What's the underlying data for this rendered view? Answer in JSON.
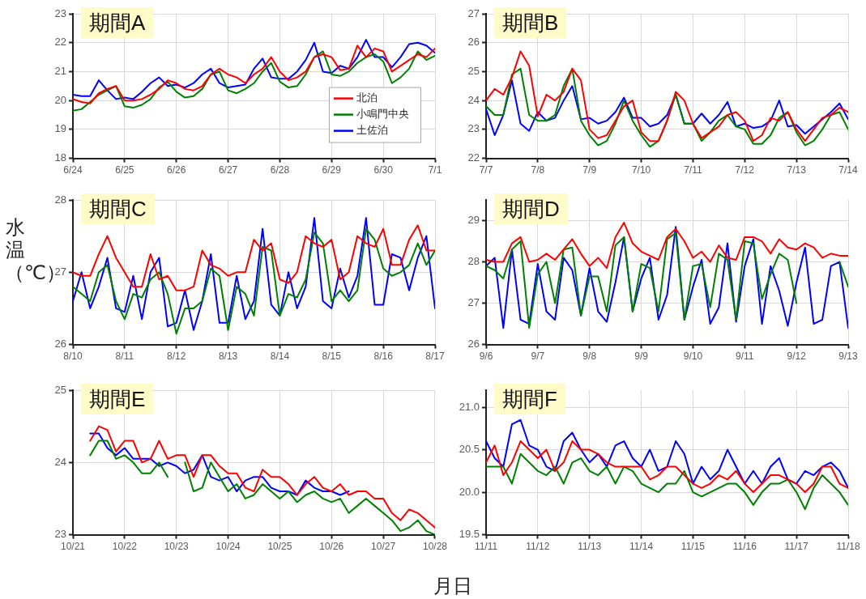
{
  "chart_data": [
    {
      "type": "line",
      "title": "期間A",
      "legend": "bottom right",
      "grid": true,
      "x": [
        "--06-24T00:00",
        "--06-24T04:00",
        "--06-24T08:00",
        "--06-24T12:00",
        "--06-24T16:00",
        "--06-24T20:00",
        "--06-25T00:00",
        "--06-25T04:00",
        "--06-25T08:00",
        "--06-25T12:00",
        "--06-25T16:00",
        "--06-25T20:00",
        "--06-26T00:00",
        "--06-26T04:00",
        "--06-26T08:00",
        "--06-26T12:00",
        "--06-26T16:00",
        "--06-26T20:00",
        "--06-27T00:00",
        "--06-27T04:00",
        "--06-27T08:00",
        "--06-27T12:00",
        "--06-27T16:00",
        "--06-27T20:00",
        "--06-28T00:00",
        "--06-28T04:00",
        "--06-28T08:00",
        "--06-28T12:00",
        "--06-28T16:00",
        "--06-28T20:00",
        "--06-29T00:00",
        "--06-29T04:00",
        "--06-29T08:00",
        "--06-29T12:00",
        "--06-29T16:00",
        "--06-29T20:00",
        "--06-30T00:00",
        "--06-30T04:00",
        "--06-30T08:00",
        "--06-30T12:00",
        "--06-30T16:00",
        "--06-30T20:00",
        "--07-01T00:00"
      ],
      "xlim": [
        "--06-24",
        "--07-01"
      ],
      "xticks": [
        {
          "value": "--06-24",
          "label": "6/24"
        },
        {
          "value": "--06-25",
          "label": "6/25"
        },
        {
          "value": "--06-26",
          "label": "6/26"
        },
        {
          "value": "--06-27",
          "label": "6/27"
        },
        {
          "value": "--06-28",
          "label": "6/28"
        },
        {
          "value": "--06-29",
          "label": "6/29"
        },
        {
          "value": "--06-30",
          "label": "6/30"
        },
        {
          "value": "--07-01",
          "label": "7/1"
        }
      ],
      "ylim": [
        18,
        23
      ],
      "yticks": [
        18,
        19,
        20,
        21,
        22,
        23
      ],
      "series": [
        {
          "name": "北泊",
          "color": "#ff0000",
          "values": [
            20.05,
            19.95,
            19.9,
            20.25,
            20.4,
            20.5,
            20.0,
            20.0,
            20.05,
            20.2,
            20.4,
            20.7,
            20.6,
            20.4,
            20.35,
            20.5,
            20.9,
            21.1,
            20.9,
            20.8,
            20.6,
            20.9,
            21.1,
            21.5,
            21.0,
            20.7,
            20.8,
            21.0,
            21.5,
            21.6,
            21.5,
            21.05,
            21.1,
            21.9,
            21.5,
            21.8,
            21.7,
            21.0,
            21.2,
            21.4,
            21.6,
            21.5,
            21.8
          ]
        },
        {
          "name": "小鳴門中央",
          "color": "#008000",
          "values": [
            19.65,
            19.7,
            19.95,
            20.2,
            20.35,
            20.5,
            19.8,
            19.75,
            19.85,
            20.05,
            20.45,
            20.65,
            20.3,
            20.1,
            20.15,
            20.4,
            20.9,
            21.0,
            20.35,
            20.25,
            20.4,
            20.6,
            21.0,
            21.3,
            20.65,
            20.45,
            20.5,
            20.9,
            21.5,
            21.7,
            20.9,
            20.85,
            21.0,
            21.3,
            21.5,
            21.6,
            21.35,
            20.6,
            20.8,
            21.1,
            21.7,
            21.4,
            21.55
          ]
        },
        {
          "name": "土佐泊",
          "color": "#0000ff",
          "values": [
            20.2,
            20.15,
            20.15,
            20.7,
            20.35,
            20.05,
            20.1,
            20.05,
            20.3,
            20.6,
            20.8,
            20.5,
            20.55,
            20.45,
            20.6,
            20.9,
            21.1,
            20.6,
            20.45,
            20.5,
            20.55,
            21.1,
            21.45,
            20.8,
            20.75,
            20.75,
            21.0,
            21.4,
            22.0,
            21.0,
            20.95,
            21.2,
            21.1,
            21.5,
            22.1,
            21.5,
            21.5,
            21.15,
            21.5,
            21.95,
            22.0,
            21.9,
            21.65
          ]
        }
      ]
    },
    {
      "type": "line",
      "title": "期間B",
      "grid": true,
      "x": [
        "--07-07T00:00",
        "--07-07T04:00",
        "--07-07T08:00",
        "--07-07T12:00",
        "--07-07T16:00",
        "--07-07T20:00",
        "--07-08T00:00",
        "--07-08T04:00",
        "--07-08T08:00",
        "--07-08T12:00",
        "--07-08T16:00",
        "--07-08T20:00",
        "--07-09T00:00",
        "--07-09T04:00",
        "--07-09T08:00",
        "--07-09T12:00",
        "--07-09T16:00",
        "--07-09T20:00",
        "--07-10T00:00",
        "--07-10T04:00",
        "--07-10T08:00",
        "--07-10T12:00",
        "--07-10T16:00",
        "--07-10T20:00",
        "--07-11T00:00",
        "--07-11T04:00",
        "--07-11T08:00",
        "--07-11T12:00",
        "--07-11T16:00",
        "--07-11T20:00",
        "--07-12T00:00",
        "--07-12T04:00",
        "--07-12T08:00",
        "--07-12T12:00",
        "--07-12T16:00",
        "--07-12T20:00",
        "--07-13T00:00",
        "--07-13T04:00",
        "--07-13T08:00",
        "--07-13T12:00",
        "--07-13T16:00",
        "--07-13T20:00",
        "--07-14T00:00"
      ],
      "xlim": [
        "--07-07",
        "--07-14"
      ],
      "xticks": [
        {
          "value": "--07-07",
          "label": "7/7"
        },
        {
          "value": "--07-08",
          "label": "7/8"
        },
        {
          "value": "--07-09",
          "label": "7/9"
        },
        {
          "value": "--07-10",
          "label": "7/10"
        },
        {
          "value": "--07-11",
          "label": "7/11"
        },
        {
          "value": "--07-12",
          "label": "7/12"
        },
        {
          "value": "--07-13",
          "label": "7/13"
        },
        {
          "value": "--07-14",
          "label": "7/14"
        }
      ],
      "ylim": [
        22,
        27
      ],
      "yticks": [
        22,
        23,
        24,
        25,
        26,
        27
      ],
      "series": [
        {
          "color": "#ff0000",
          "values": [
            24.0,
            24.4,
            24.2,
            24.8,
            25.7,
            25.2,
            23.45,
            24.2,
            24.0,
            24.3,
            25.1,
            24.7,
            23.0,
            22.7,
            22.8,
            23.3,
            23.8,
            24.0,
            22.9,
            22.6,
            22.6,
            23.3,
            24.3,
            24.0,
            23.2,
            22.7,
            22.9,
            23.1,
            23.5,
            23.6,
            23.3,
            22.6,
            22.8,
            23.4,
            23.3,
            23.6,
            23.0,
            22.6,
            23.0,
            23.4,
            23.5,
            23.75,
            23.6
          ]
        },
        {
          "color": "#008000",
          "values": [
            23.8,
            23.5,
            23.5,
            24.9,
            25.1,
            23.5,
            23.3,
            23.3,
            23.5,
            24.5,
            25.1,
            23.3,
            22.8,
            22.45,
            22.6,
            23.2,
            24.0,
            23.3,
            22.8,
            22.4,
            22.6,
            23.3,
            24.2,
            23.2,
            23.2,
            22.6,
            22.9,
            23.3,
            23.5,
            23.1,
            23.0,
            22.5,
            22.5,
            22.8,
            23.4,
            23.6,
            22.9,
            22.45,
            22.6,
            23.0,
            23.5,
            23.6,
            23.0
          ]
        },
        {
          "color": "#0000ff",
          "values": [
            23.7,
            22.8,
            23.5,
            24.7,
            23.2,
            22.95,
            23.6,
            23.3,
            23.4,
            24.0,
            24.5,
            23.35,
            23.4,
            23.2,
            23.3,
            23.6,
            24.1,
            23.4,
            23.4,
            23.1,
            23.2,
            23.5,
            24.2,
            23.2,
            23.2,
            23.55,
            23.2,
            23.5,
            23.95,
            23.1,
            23.2,
            23.05,
            23.1,
            23.3,
            24.0,
            23.1,
            23.15,
            22.85,
            23.1,
            23.35,
            23.6,
            23.9,
            23.35
          ]
        }
      ]
    },
    {
      "type": "line",
      "title": "期間C",
      "ylabel": "水温（℃）",
      "grid": true,
      "x": [
        "--08-10T00:00",
        "--08-10T04:00",
        "--08-10T08:00",
        "--08-10T12:00",
        "--08-10T16:00",
        "--08-10T20:00",
        "--08-11T00:00",
        "--08-11T04:00",
        "--08-11T08:00",
        "--08-11T12:00",
        "--08-11T16:00",
        "--08-11T20:00",
        "--08-12T00:00",
        "--08-12T04:00",
        "--08-12T08:00",
        "--08-12T12:00",
        "--08-12T16:00",
        "--08-12T20:00",
        "--08-13T00:00",
        "--08-13T04:00",
        "--08-13T08:00",
        "--08-13T12:00",
        "--08-13T16:00",
        "--08-13T20:00",
        "--08-14T00:00",
        "--08-14T04:00",
        "--08-14T08:00",
        "--08-14T12:00",
        "--08-14T16:00",
        "--08-14T20:00",
        "--08-15T00:00",
        "--08-15T04:00",
        "--08-15T08:00",
        "--08-15T12:00",
        "--08-15T16:00",
        "--08-15T20:00",
        "--08-16T00:00",
        "--08-16T04:00",
        "--08-16T08:00",
        "--08-16T12:00",
        "--08-16T16:00",
        "--08-16T20:00",
        "--08-17T00:00"
      ],
      "xlim": [
        "--08-10",
        "--08-17"
      ],
      "xticks": [
        {
          "value": "--08-10",
          "label": "8/10"
        },
        {
          "value": "--08-11",
          "label": "8/11"
        },
        {
          "value": "--08-12",
          "label": "8/12"
        },
        {
          "value": "--08-13",
          "label": "8/13"
        },
        {
          "value": "--08-14",
          "label": "8/14"
        },
        {
          "value": "--08-15",
          "label": "8/15"
        },
        {
          "value": "--08-16",
          "label": "8/16"
        },
        {
          "value": "--08-17",
          "label": "8/17"
        }
      ],
      "ylim": [
        26,
        28
      ],
      "yticks": [
        26,
        27,
        28
      ],
      "series": [
        {
          "color": "#ff0000",
          "values": [
            27.0,
            26.95,
            26.95,
            27.25,
            27.5,
            27.2,
            27.0,
            26.8,
            26.8,
            27.25,
            26.9,
            26.95,
            26.75,
            26.75,
            26.8,
            27.3,
            27.1,
            27.05,
            26.95,
            27.0,
            27.0,
            27.45,
            27.3,
            27.4,
            26.9,
            26.85,
            27.0,
            27.5,
            27.4,
            27.35,
            27.45,
            26.9,
            27.0,
            27.5,
            27.4,
            27.35,
            27.6,
            27.1,
            27.1,
            27.45,
            27.65,
            27.3,
            27.3
          ]
        },
        {
          "color": "#008000",
          "values": [
            26.8,
            26.7,
            26.6,
            27.0,
            27.1,
            26.6,
            26.35,
            26.7,
            26.65,
            26.9,
            27.0,
            26.7,
            26.15,
            26.5,
            26.5,
            26.6,
            27.05,
            26.95,
            26.2,
            26.8,
            26.7,
            26.4,
            27.35,
            27.3,
            26.4,
            26.7,
            26.65,
            26.9,
            27.55,
            27.4,
            26.6,
            26.75,
            26.6,
            26.75,
            27.6,
            27.45,
            27.05,
            26.95,
            27.0,
            27.1,
            27.4,
            27.1,
            27.3
          ]
        },
        {
          "color": "#0000ff",
          "values": [
            26.6,
            27.0,
            26.5,
            26.8,
            27.2,
            26.5,
            26.45,
            26.95,
            26.35,
            27.0,
            27.2,
            26.25,
            26.3,
            26.75,
            26.2,
            26.6,
            27.25,
            26.3,
            26.3,
            26.95,
            26.35,
            26.6,
            27.6,
            26.55,
            26.4,
            27.0,
            26.5,
            26.8,
            27.75,
            26.6,
            26.5,
            27.05,
            26.65,
            26.95,
            27.75,
            26.55,
            26.55,
            27.25,
            27.2,
            26.75,
            27.2,
            27.5,
            26.5
          ]
        }
      ]
    },
    {
      "type": "line",
      "title": "期間D",
      "grid": true,
      "x": [
        "--09-06T00:00",
        "--09-06T04:00",
        "--09-06T08:00",
        "--09-06T12:00",
        "--09-06T16:00",
        "--09-06T20:00",
        "--09-07T00:00",
        "--09-07T04:00",
        "--09-07T08:00",
        "--09-07T12:00",
        "--09-07T16:00",
        "--09-07T20:00",
        "--09-08T00:00",
        "--09-08T04:00",
        "--09-08T08:00",
        "--09-08T12:00",
        "--09-08T16:00",
        "--09-08T20:00",
        "--09-09T00:00",
        "--09-09T04:00",
        "--09-09T08:00",
        "--09-09T12:00",
        "--09-09T16:00",
        "--09-09T20:00",
        "--09-10T00:00",
        "--09-10T04:00",
        "--09-10T08:00",
        "--09-10T12:00",
        "--09-10T16:00",
        "--09-10T20:00",
        "--09-11T00:00",
        "--09-11T04:00",
        "--09-11T08:00",
        "--09-11T12:00",
        "--09-11T16:00",
        "--09-11T20:00",
        "--09-12T00:00",
        "--09-12T04:00",
        "--09-12T08:00",
        "--09-12T12:00",
        "--09-12T16:00",
        "--09-12T20:00",
        "--09-13T00:00"
      ],
      "xlim": [
        "--09-06",
        "--09-13"
      ],
      "xticks": [
        {
          "value": "--09-06",
          "label": "9/6"
        },
        {
          "value": "--09-07",
          "label": "9/7"
        },
        {
          "value": "--09-08",
          "label": "9/8"
        },
        {
          "value": "--09-09",
          "label": "9/9"
        },
        {
          "value": "--09-10",
          "label": "9/10"
        },
        {
          "value": "--09-11",
          "label": "9/11"
        },
        {
          "value": "--09-12",
          "label": "9/12"
        },
        {
          "value": "--09-13",
          "label": "9/13"
        }
      ],
      "ylim": [
        26,
        29.5
      ],
      "yticks": [
        26,
        27,
        28,
        29
      ],
      "series": [
        {
          "color": "#ff0000",
          "values": [
            28.05,
            28.0,
            28.0,
            28.45,
            28.6,
            28.0,
            28.05,
            28.2,
            28.05,
            28.3,
            28.55,
            28.2,
            27.9,
            28.1,
            27.85,
            28.6,
            28.95,
            28.45,
            28.25,
            28.15,
            28.05,
            28.6,
            28.8,
            28.5,
            28.1,
            28.25,
            28.0,
            28.4,
            28.1,
            28.05,
            28.6,
            28.6,
            28.5,
            28.2,
            28.55,
            28.35,
            28.3,
            28.45,
            28.35,
            28.1,
            28.2,
            28.15,
            28.15
          ]
        },
        {
          "color": "#008000",
          "values": [
            27.9,
            27.8,
            27.6,
            28.3,
            28.5,
            26.4,
            27.7,
            28.0,
            27.0,
            28.3,
            28.35,
            26.7,
            27.65,
            27.65,
            26.8,
            28.4,
            28.6,
            26.8,
            27.95,
            27.85,
            26.8,
            28.55,
            28.7,
            26.6,
            27.9,
            27.95,
            26.9,
            28.2,
            28.05,
            26.6,
            28.5,
            28.45,
            27.1,
            27.7,
            28.2,
            28.05,
            27.0,
            null,
            null,
            null,
            null,
            28.0,
            27.4
          ]
        },
        {
          "color": "#0000ff",
          "values": [
            27.9,
            28.1,
            26.4,
            28.3,
            26.6,
            26.5,
            27.95,
            26.8,
            26.6,
            28.1,
            27.8,
            26.7,
            27.85,
            26.8,
            26.55,
            27.5,
            28.6,
            26.8,
            27.6,
            28.1,
            26.6,
            27.2,
            28.85,
            26.6,
            27.4,
            28.05,
            26.5,
            26.9,
            28.45,
            26.55,
            27.9,
            28.55,
            26.5,
            27.9,
            27.3,
            26.45,
            27.5,
            28.35,
            26.5,
            26.6,
            27.9,
            28.0,
            26.4
          ]
        }
      ]
    },
    {
      "type": "line",
      "title": "期間E",
      "xlabel": "月日",
      "grid": true,
      "x": [
        "--10-21T08:00",
        "--10-21T12:00",
        "--10-21T16:00",
        "--10-21T20:00",
        "--10-22T00:00",
        "--10-22T04:00",
        "--10-22T08:00",
        "--10-22T12:00",
        "--10-22T16:00",
        "--10-22T20:00",
        "--10-23T00:00",
        "--10-23T04:00",
        "--10-23T08:00",
        "--10-23T12:00",
        "--10-23T16:00",
        "--10-23T20:00",
        "--10-24T00:00",
        "--10-24T04:00",
        "--10-24T08:00",
        "--10-24T12:00",
        "--10-24T16:00",
        "--10-24T20:00",
        "--10-25T00:00",
        "--10-25T04:00",
        "--10-25T08:00",
        "--10-25T12:00",
        "--10-25T16:00",
        "--10-25T20:00",
        "--10-26T00:00",
        "--10-26T04:00",
        "--10-26T08:00",
        "--10-26T12:00",
        "--10-26T16:00",
        "--10-26T20:00",
        "--10-27T00:00",
        "--10-27T04:00",
        "--10-27T08:00",
        "--10-27T12:00",
        "--10-27T16:00",
        "--10-27T20:00",
        "--10-28T00:00"
      ],
      "xlim": [
        "--10-21",
        "--10-28"
      ],
      "xticks": [
        {
          "value": "--10-21",
          "label": "10/21"
        },
        {
          "value": "--10-22",
          "label": "10/22"
        },
        {
          "value": "--10-23",
          "label": "10/23"
        },
        {
          "value": "--10-24",
          "label": "10/24"
        },
        {
          "value": "--10-25",
          "label": "10/25"
        },
        {
          "value": "--10-26",
          "label": "10/26"
        },
        {
          "value": "--10-27",
          "label": "10/27"
        },
        {
          "value": "--10-28",
          "label": "10/28"
        }
      ],
      "ylim": [
        23,
        25
      ],
      "yticks": [
        23,
        24,
        25
      ],
      "series": [
        {
          "color": "#ff0000",
          "values": [
            24.3,
            24.5,
            24.45,
            24.15,
            24.3,
            24.3,
            24.0,
            24.05,
            24.3,
            24.05,
            24.1,
            24.1,
            23.8,
            24.1,
            24.1,
            23.95,
            23.85,
            23.85,
            23.65,
            23.6,
            23.9,
            23.8,
            23.8,
            23.7,
            23.55,
            23.7,
            23.8,
            23.65,
            23.6,
            23.7,
            23.55,
            23.6,
            23.6,
            23.5,
            23.5,
            23.3,
            23.2,
            23.35,
            23.3,
            23.2,
            23.1
          ]
        },
        {
          "color": "#008000",
          "values": [
            24.1,
            24.3,
            24.3,
            24.05,
            24.1,
            24.0,
            23.85,
            23.85,
            24.0,
            23.8,
            null,
            24.0,
            23.6,
            23.65,
            24.0,
            23.8,
            23.6,
            23.7,
            23.5,
            23.55,
            23.7,
            23.6,
            23.5,
            23.6,
            23.45,
            23.55,
            23.6,
            23.5,
            23.45,
            23.5,
            23.3,
            23.4,
            23.5,
            23.4,
            23.3,
            23.2,
            23.05,
            23.1,
            23.2,
            23.05,
            23.0
          ]
        },
        {
          "color": "#0000ff",
          "values": [
            24.4,
            24.4,
            24.2,
            24.1,
            24.2,
            24.05,
            24.05,
            24.05,
            23.95,
            24.0,
            23.95,
            23.85,
            23.9,
            24.1,
            23.8,
            23.75,
            23.8,
            23.6,
            23.75,
            23.8,
            23.8,
            23.65,
            23.6,
            23.6,
            23.55,
            23.75,
            23.65,
            23.6,
            23.6,
            23.55,
            23.6,
            null,
            null,
            null,
            null,
            null,
            null,
            null,
            null,
            null,
            null
          ]
        }
      ]
    },
    {
      "type": "line",
      "title": "期間F",
      "grid": true,
      "x": [
        "--11-11T00:00",
        "--11-11T04:00",
        "--11-11T08:00",
        "--11-11T12:00",
        "--11-11T16:00",
        "--11-11T20:00",
        "--11-12T00:00",
        "--11-12T04:00",
        "--11-12T08:00",
        "--11-12T12:00",
        "--11-12T16:00",
        "--11-12T20:00",
        "--11-13T00:00",
        "--11-13T04:00",
        "--11-13T08:00",
        "--11-13T12:00",
        "--11-13T16:00",
        "--11-13T20:00",
        "--11-14T00:00",
        "--11-14T04:00",
        "--11-14T08:00",
        "--11-14T12:00",
        "--11-14T16:00",
        "--11-14T20:00",
        "--11-15T00:00",
        "--11-15T04:00",
        "--11-15T08:00",
        "--11-15T12:00",
        "--11-15T16:00",
        "--11-15T20:00",
        "--11-16T00:00",
        "--11-16T04:00",
        "--11-16T08:00",
        "--11-16T12:00",
        "--11-16T16:00",
        "--11-16T20:00",
        "--11-17T00:00",
        "--11-17T04:00",
        "--11-17T08:00",
        "--11-17T12:00",
        "--11-17T16:00",
        "--11-17T20:00",
        "--11-18T00:00"
      ],
      "xlim": [
        "--11-11",
        "--11-18"
      ],
      "xticks": [
        {
          "value": "--11-11",
          "label": "11/11"
        },
        {
          "value": "--11-12",
          "label": "11/12"
        },
        {
          "value": "--11-13",
          "label": "11/13"
        },
        {
          "value": "--11-14",
          "label": "11/14"
        },
        {
          "value": "--11-15",
          "label": "11/15"
        },
        {
          "value": "--11-16",
          "label": "11/16"
        },
        {
          "value": "--11-17",
          "label": "11/17"
        },
        {
          "value": "--11-18",
          "label": "11/18"
        }
      ],
      "ylim": [
        19.5,
        21.2
      ],
      "yticks": [
        {
          "value": 19.5,
          "label": "19.5"
        },
        {
          "value": 20,
          "label": "20.0"
        },
        {
          "value": 20.5,
          "label": "20.5"
        },
        {
          "value": 21,
          "label": "21.0"
        }
      ],
      "series": [
        {
          "color": "#ff0000",
          "values": [
            20.35,
            20.55,
            20.2,
            20.35,
            20.6,
            20.5,
            20.4,
            20.5,
            20.25,
            20.35,
            20.6,
            20.5,
            20.5,
            20.45,
            20.35,
            20.3,
            20.3,
            20.3,
            20.3,
            20.15,
            20.2,
            20.3,
            20.3,
            20.2,
            20.1,
            20.05,
            20.1,
            20.2,
            20.15,
            20.25,
            20.1,
            20.0,
            20.1,
            20.2,
            20.2,
            20.15,
            20.1,
            20.0,
            20.1,
            20.3,
            20.3,
            20.1,
            20.05
          ]
        },
        {
          "color": "#008000",
          "values": [
            20.3,
            20.3,
            20.3,
            20.1,
            20.45,
            20.35,
            20.25,
            20.2,
            20.3,
            20.1,
            20.35,
            20.4,
            20.25,
            20.2,
            20.3,
            20.1,
            20.3,
            20.25,
            20.1,
            20.05,
            20.0,
            20.1,
            20.1,
            20.25,
            20.0,
            19.95,
            20.0,
            20.05,
            20.1,
            20.1,
            20.0,
            19.85,
            20.0,
            20.1,
            20.1,
            20.15,
            20.0,
            19.8,
            20.05,
            20.2,
            20.1,
            20.0,
            19.85
          ]
        },
        {
          "color": "#0000ff",
          "values": [
            20.6,
            20.4,
            20.3,
            20.8,
            20.85,
            20.55,
            20.5,
            20.3,
            20.25,
            20.6,
            20.7,
            20.5,
            20.35,
            20.45,
            20.3,
            20.55,
            20.6,
            20.4,
            20.3,
            20.5,
            20.25,
            20.3,
            20.6,
            20.45,
            20.1,
            20.3,
            20.15,
            20.25,
            20.5,
            20.3,
            20.1,
            20.25,
            20.1,
            20.3,
            20.4,
            20.15,
            20.1,
            20.25,
            20.2,
            20.3,
            20.35,
            20.25,
            20.05
          ]
        }
      ]
    }
  ]
}
